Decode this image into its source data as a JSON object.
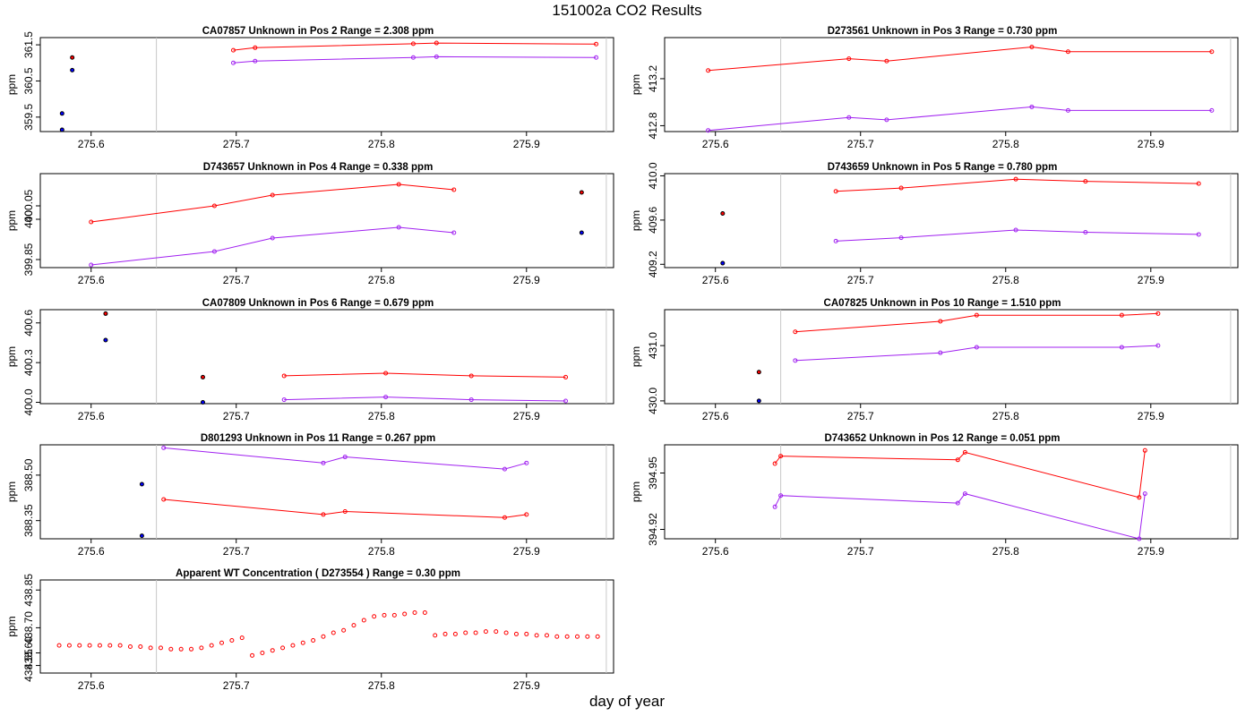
{
  "figure": {
    "title": "151002a  CO2 Results",
    "xlabel": "day of year",
    "colors": {
      "series_red": "#ff0000",
      "series_purple": "#a020f0",
      "marker_edge": "#000000",
      "marker_red_fill": "#ff0000",
      "marker_blue_fill": "#0000ff",
      "vline": "#c8c8c8"
    }
  },
  "chart_data": [
    {
      "type": "line",
      "title": "CA07857    Unknown in Pos 2         Range =  2.308 ppm",
      "ylabel": "ppm",
      "xlim": [
        275.565,
        275.96
      ],
      "ylim": [
        359.1,
        361.7
      ],
      "xticks": [
        275.6,
        275.7,
        275.8,
        275.9
      ],
      "xtick_labels": [
        "275.6",
        "275.7",
        "275.8",
        "275.9"
      ],
      "yticks": [
        359.5,
        360.5,
        361.5
      ],
      "ytick_labels": [
        "359.5",
        "360.5",
        "361.5"
      ],
      "vlines": [
        275.645,
        275.955
      ],
      "markers": [
        {
          "x": 275.587,
          "y": 361.15,
          "color": "red"
        },
        {
          "x": 275.58,
          "y": 359.6,
          "color": "blue"
        },
        {
          "x": 275.587,
          "y": 360.8,
          "color": "blue"
        },
        {
          "x": 275.58,
          "y": 359.15,
          "color": "blue"
        }
      ],
      "series": [
        {
          "name": "red",
          "x": [
            275.698,
            275.713,
            275.822,
            275.838,
            275.948
          ],
          "y": [
            361.35,
            361.42,
            361.53,
            361.55,
            361.52
          ]
        },
        {
          "name": "purple",
          "x": [
            275.698,
            275.713,
            275.822,
            275.838,
            275.948
          ],
          "y": [
            361.0,
            361.05,
            361.15,
            361.17,
            361.15
          ]
        }
      ]
    },
    {
      "type": "line",
      "title": "D273561    Unknown in Pos 3         Range =  0.730 ppm",
      "ylabel": "ppm",
      "xlim": [
        275.565,
        275.96
      ],
      "ylim": [
        412.75,
        413.55
      ],
      "xticks": [
        275.6,
        275.7,
        275.8,
        275.9
      ],
      "xtick_labels": [
        "275.6",
        "275.7",
        "275.8",
        "275.9"
      ],
      "yticks": [
        412.8,
        413.2
      ],
      "ytick_labels": [
        "412.8",
        "413.2"
      ],
      "vlines": [
        275.645,
        275.955
      ],
      "markers": [],
      "series": [
        {
          "name": "red",
          "x": [
            275.595,
            275.692,
            275.718,
            275.818,
            275.843,
            275.942
          ],
          "y": [
            413.27,
            413.37,
            413.35,
            413.47,
            413.43,
            413.43
          ]
        },
        {
          "name": "purple",
          "x": [
            275.595,
            275.692,
            275.718,
            275.818,
            275.843,
            275.942
          ],
          "y": [
            412.76,
            412.87,
            412.85,
            412.96,
            412.93,
            412.93
          ]
        }
      ]
    },
    {
      "type": "line",
      "title": "D743657    Unknown in Pos 4         Range =  0.338 ppm",
      "ylabel": "ppm",
      "xlim": [
        275.565,
        275.96
      ],
      "ylim": [
        399.82,
        400.17
      ],
      "xticks": [
        275.6,
        275.7,
        275.8,
        275.9
      ],
      "xtick_labels": [
        "275.6",
        "275.7",
        "275.8",
        "275.9"
      ],
      "yticks": [
        399.85,
        400.0,
        400.05
      ],
      "ytick_labels": [
        "399.85",
        "400",
        "400.05"
      ],
      "vlines": [
        275.645,
        275.955
      ],
      "markers": [
        {
          "x": 275.938,
          "y": 400.1,
          "color": "red"
        },
        {
          "x": 275.938,
          "y": 399.95,
          "color": "blue"
        }
      ],
      "series": [
        {
          "name": "red",
          "x": [
            275.6,
            275.685,
            275.725,
            275.812,
            275.85
          ],
          "y": [
            399.99,
            400.05,
            400.09,
            400.13,
            400.11
          ]
        },
        {
          "name": "purple",
          "x": [
            275.6,
            275.685,
            275.725,
            275.812,
            275.85
          ],
          "y": [
            399.83,
            399.88,
            399.93,
            399.97,
            399.95
          ]
        }
      ]
    },
    {
      "type": "line",
      "title": "D743659    Unknown in Pos 5         Range =  0.780 ppm",
      "ylabel": "ppm",
      "xlim": [
        275.565,
        275.96
      ],
      "ylim": [
        409.17,
        410.02
      ],
      "xticks": [
        275.6,
        275.7,
        275.8,
        275.9
      ],
      "xtick_labels": [
        "275.6",
        "275.7",
        "275.8",
        "275.9"
      ],
      "yticks": [
        409.2,
        409.6,
        410.0
      ],
      "ytick_labels": [
        "409.2",
        "409.6",
        "410.0"
      ],
      "vlines": [
        275.645,
        275.955
      ],
      "markers": [
        {
          "x": 275.605,
          "y": 409.66,
          "color": "red"
        },
        {
          "x": 275.605,
          "y": 409.21,
          "color": "blue"
        }
      ],
      "series": [
        {
          "name": "red",
          "x": [
            275.683,
            275.728,
            275.807,
            275.855,
            275.933
          ],
          "y": [
            409.86,
            409.89,
            409.97,
            409.95,
            409.93
          ]
        },
        {
          "name": "purple",
          "x": [
            275.683,
            275.728,
            275.807,
            275.855,
            275.933
          ],
          "y": [
            409.41,
            409.44,
            409.51,
            409.49,
            409.47
          ]
        }
      ]
    },
    {
      "type": "line",
      "title": "CA07809    Unknown in Pos 6         Range =  0.679 ppm",
      "ylabel": "ppm",
      "xlim": [
        275.565,
        275.96
      ],
      "ylim": [
        399.99,
        400.7
      ],
      "xticks": [
        275.6,
        275.7,
        275.8,
        275.9
      ],
      "xtick_labels": [
        "275.6",
        "275.7",
        "275.8",
        "275.9"
      ],
      "yticks": [
        400.0,
        400.3,
        400.6
      ],
      "ytick_labels": [
        "400.0",
        "400.3",
        "400.6"
      ],
      "vlines": [
        275.645,
        275.955
      ],
      "markers": [
        {
          "x": 275.61,
          "y": 400.67,
          "color": "red"
        },
        {
          "x": 275.61,
          "y": 400.47,
          "color": "blue"
        },
        {
          "x": 275.677,
          "y": 400.19,
          "color": "red"
        },
        {
          "x": 275.677,
          "y": 400.0,
          "color": "blue"
        }
      ],
      "series": [
        {
          "name": "red",
          "x": [
            275.733,
            275.803,
            275.862,
            275.927
          ],
          "y": [
            400.2,
            400.22,
            400.2,
            400.19
          ]
        },
        {
          "name": "purple",
          "x": [
            275.733,
            275.803,
            275.862,
            275.927
          ],
          "y": [
            400.02,
            400.04,
            400.02,
            400.01
          ]
        }
      ]
    },
    {
      "type": "line",
      "title": "CA07825    Unknown in Pos 10         Range =  1.510 ppm",
      "ylabel": "ppm",
      "xlim": [
        275.565,
        275.96
      ],
      "ylim": [
        429.95,
        431.65
      ],
      "xticks": [
        275.6,
        275.7,
        275.8,
        275.9
      ],
      "xtick_labels": [
        "275.6",
        "275.7",
        "275.8",
        "275.9"
      ],
      "yticks": [
        430.0,
        431.0
      ],
      "ytick_labels": [
        "430.0",
        "431.0"
      ],
      "vlines": [
        275.645,
        275.955
      ],
      "markers": [
        {
          "x": 275.63,
          "y": 430.52,
          "color": "red"
        },
        {
          "x": 275.63,
          "y": 430.0,
          "color": "blue"
        }
      ],
      "series": [
        {
          "name": "red",
          "x": [
            275.655,
            275.755,
            275.78,
            275.88,
            275.905
          ],
          "y": [
            431.25,
            431.44,
            431.55,
            431.55,
            431.58
          ]
        },
        {
          "name": "purple",
          "x": [
            275.655,
            275.755,
            275.78,
            275.88,
            275.905
          ],
          "y": [
            430.73,
            430.87,
            430.97,
            430.97,
            431.0
          ]
        }
      ]
    },
    {
      "type": "line",
      "title": "D801293    Unknown in Pos 11         Range =  0.267 ppm",
      "ylabel": "ppm",
      "xlim": [
        275.565,
        275.96
      ],
      "ylim": [
        388.29,
        388.6
      ],
      "xticks": [
        275.6,
        275.7,
        275.8,
        275.9
      ],
      "xtick_labels": [
        "275.6",
        "275.7",
        "275.8",
        "275.9"
      ],
      "yticks": [
        388.35,
        388.5
      ],
      "ytick_labels": [
        "388.35",
        "388.50"
      ],
      "vlines": [
        275.645,
        275.955
      ],
      "markers": [
        {
          "x": 275.635,
          "y": 388.47,
          "color": "blue"
        },
        {
          "x": 275.635,
          "y": 388.3,
          "color": "blue"
        }
      ],
      "series": [
        {
          "name": "red",
          "x": [
            275.65,
            275.76,
            275.775,
            275.885,
            275.9
          ],
          "y": [
            388.42,
            388.37,
            388.38,
            388.36,
            388.37
          ]
        },
        {
          "name": "purple",
          "x": [
            275.65,
            275.76,
            275.775,
            275.885,
            275.9
          ],
          "y": [
            388.59,
            388.54,
            388.56,
            388.52,
            388.54
          ]
        }
      ]
    },
    {
      "type": "line",
      "title": "D743652    Unknown in Pos 12         Range =  0.051 ppm",
      "ylabel": "ppm",
      "xlim": [
        275.565,
        275.96
      ],
      "ylim": [
        394.915,
        394.965
      ],
      "xticks": [
        275.6,
        275.7,
        275.8,
        275.9
      ],
      "xtick_labels": [
        "275.6",
        "275.7",
        "275.8",
        "275.9"
      ],
      "yticks": [
        394.92,
        394.95
      ],
      "ytick_labels": [
        "394.92",
        "394.95"
      ],
      "vlines": [
        275.645,
        275.955
      ],
      "markers": [],
      "series": [
        {
          "name": "red",
          "x": [
            275.641,
            275.645,
            275.767,
            275.772,
            275.892,
            275.896
          ],
          "y": [
            394.955,
            394.959,
            394.957,
            394.961,
            394.937,
            394.962
          ]
        },
        {
          "name": "purple",
          "x": [
            275.641,
            275.645,
            275.767,
            275.772,
            275.892,
            275.896
          ],
          "y": [
            394.932,
            394.938,
            394.934,
            394.939,
            394.915,
            394.939
          ]
        }
      ]
    },
    {
      "type": "scatter",
      "title": "Apparent WT Concentration ( D273554 )          Range = 0.30 ppm",
      "ylabel": "ppm",
      "xlim": [
        275.565,
        275.96
      ],
      "ylim": [
        438.52,
        438.89
      ],
      "xticks": [
        275.6,
        275.7,
        275.8,
        275.9
      ],
      "xtick_labels": [
        "275.6",
        "275.7",
        "275.8",
        "275.9"
      ],
      "yticks": [
        438.55,
        438.6,
        438.7,
        438.85
      ],
      "ytick_labels": [
        "438.55",
        "438.60",
        "438.70",
        "438.85"
      ],
      "vlines": [
        275.645,
        275.955
      ],
      "markers": [],
      "series": [
        {
          "name": "red",
          "x": [
            275.578,
            275.585,
            275.592,
            275.599,
            275.606,
            275.613,
            275.62,
            275.627,
            275.634,
            275.641,
            275.648,
            275.655,
            275.662,
            275.669,
            275.676,
            275.683,
            275.69,
            275.697,
            275.704,
            275.711,
            275.718,
            275.725,
            275.732,
            275.739,
            275.746,
            275.753,
            275.76,
            275.767,
            275.774,
            275.781,
            275.788,
            275.795,
            275.802,
            275.809,
            275.816,
            275.823,
            275.83,
            275.837,
            275.844,
            275.851,
            275.858,
            275.865,
            275.872,
            275.879,
            275.886,
            275.893,
            275.9,
            275.907,
            275.914,
            275.921,
            275.928,
            275.935,
            275.942,
            275.949
          ],
          "y": [
            438.63,
            438.63,
            438.63,
            438.63,
            438.63,
            438.63,
            438.63,
            438.625,
            438.625,
            438.62,
            438.62,
            438.615,
            438.615,
            438.615,
            438.62,
            438.63,
            438.64,
            438.65,
            438.66,
            438.59,
            438.6,
            438.61,
            438.62,
            438.63,
            438.64,
            438.65,
            438.665,
            438.68,
            438.69,
            438.71,
            438.73,
            438.745,
            438.75,
            438.75,
            438.755,
            438.76,
            438.76,
            438.67,
            438.675,
            438.675,
            438.68,
            438.68,
            438.685,
            438.685,
            438.68,
            438.675,
            438.675,
            438.67,
            438.67,
            438.665,
            438.665,
            438.665,
            438.665,
            438.665
          ]
        }
      ]
    }
  ]
}
